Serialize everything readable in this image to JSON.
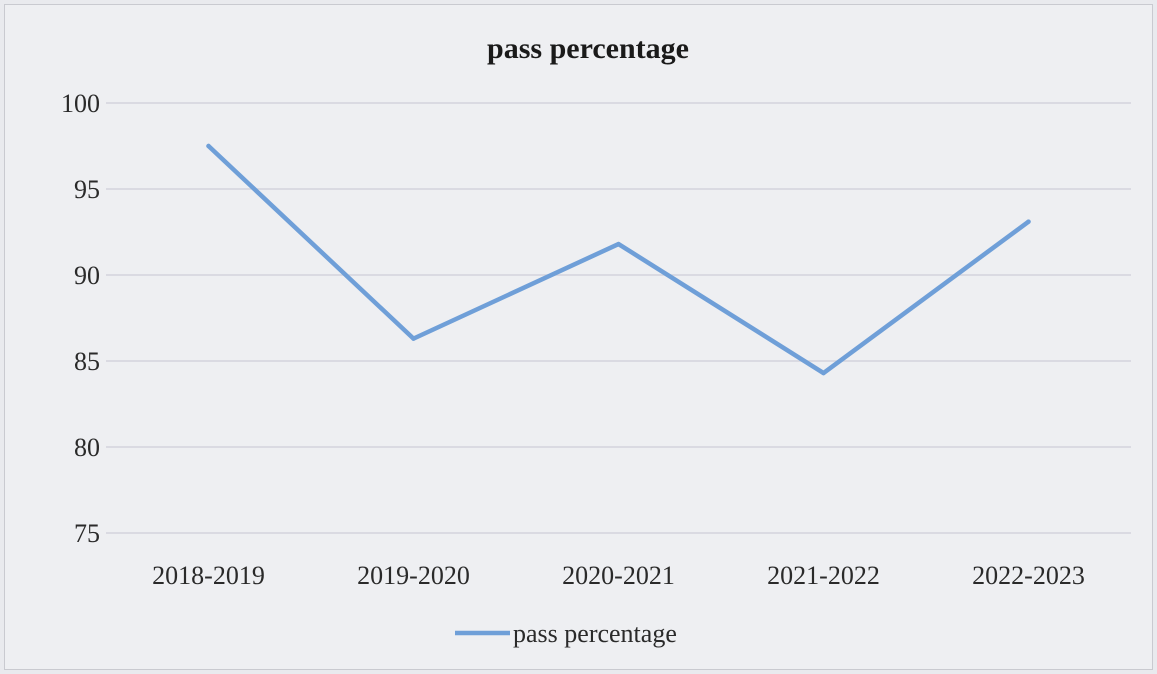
{
  "chart_data": {
    "type": "line",
    "title": "pass percentage",
    "xlabel": "",
    "ylabel": "",
    "categories": [
      "2018-2019",
      "2019-2020",
      "2020-2021",
      "2021-2022",
      "2022-2023"
    ],
    "series": [
      {
        "name": "pass percentage",
        "values": [
          97.5,
          86.3,
          91.8,
          84.3,
          93.1
        ],
        "color": "#6f9fd8"
      }
    ],
    "ylim": [
      75,
      100
    ],
    "yticks": [
      75,
      80,
      85,
      90,
      95,
      100
    ],
    "grid": true,
    "legend": "bottom"
  }
}
